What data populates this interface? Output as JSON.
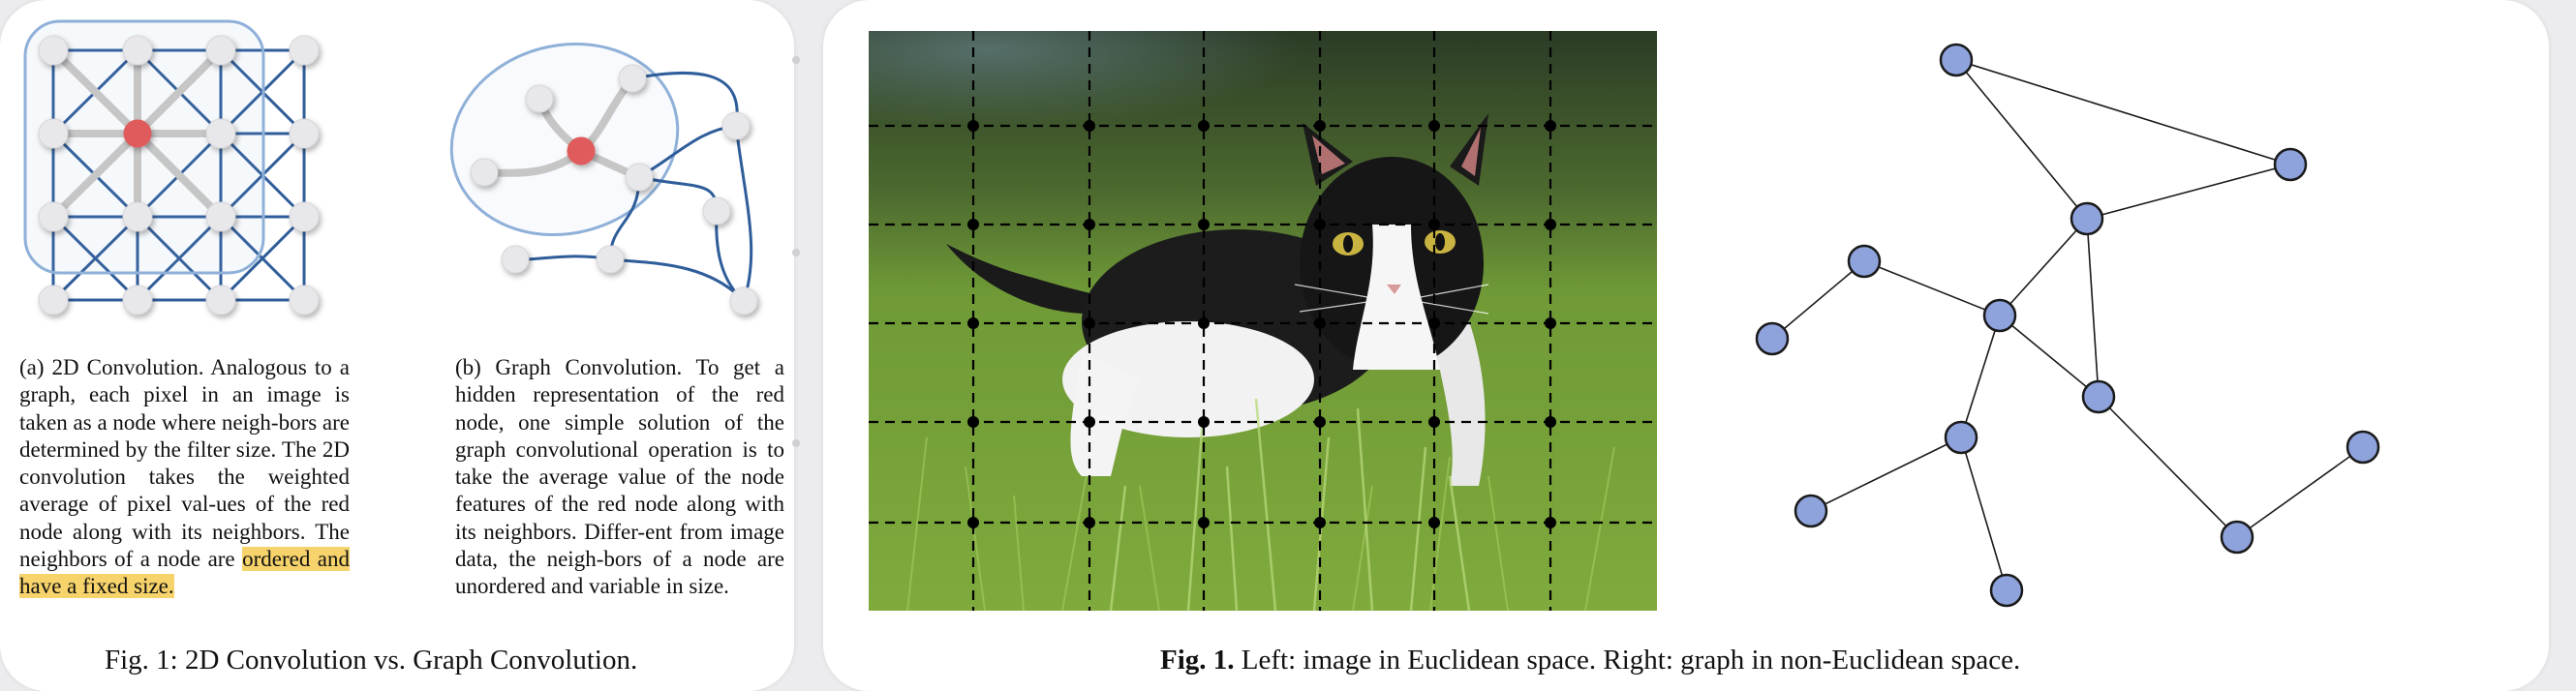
{
  "left_figure": {
    "subcaption_a": {
      "text_before": "(a) 2D Convolution. Analogous to a graph, each pixel in an image is taken as a node where neigh-bors are determined by the filter size. The 2D convolution takes the weighted average of pixel val-ues of the red node along with its neighbors. The neighbors of a node are ",
      "highlight": "ordered and have a fixed size."
    },
    "subcaption_b": "(b) Graph Convolution. To get a hidden representation of the red node, one simple solution of the graph convolutional operation is to take the average value of the node features of the red node along with its neighbors. Differ-ent from image data, the neigh-bors of a node are unordered and variable in size.",
    "caption": "Fig. 1: 2D Convolution vs. Graph Convolution.",
    "colors": {
      "edge": "#2f5d9a",
      "node": "#e8e8ea",
      "center": "#e05b5b",
      "highlight": "#f7d36b",
      "region": "#8fb0d8"
    }
  },
  "right_figure": {
    "caption_label": "Fig. 1.",
    "caption_text": "Left: image in Euclidean space. Right: graph in non-Euclidean space.",
    "colors": {
      "node_fill": "#8ea2dc",
      "node_stroke": "#1a1a1a",
      "grid": "#000000"
    }
  }
}
